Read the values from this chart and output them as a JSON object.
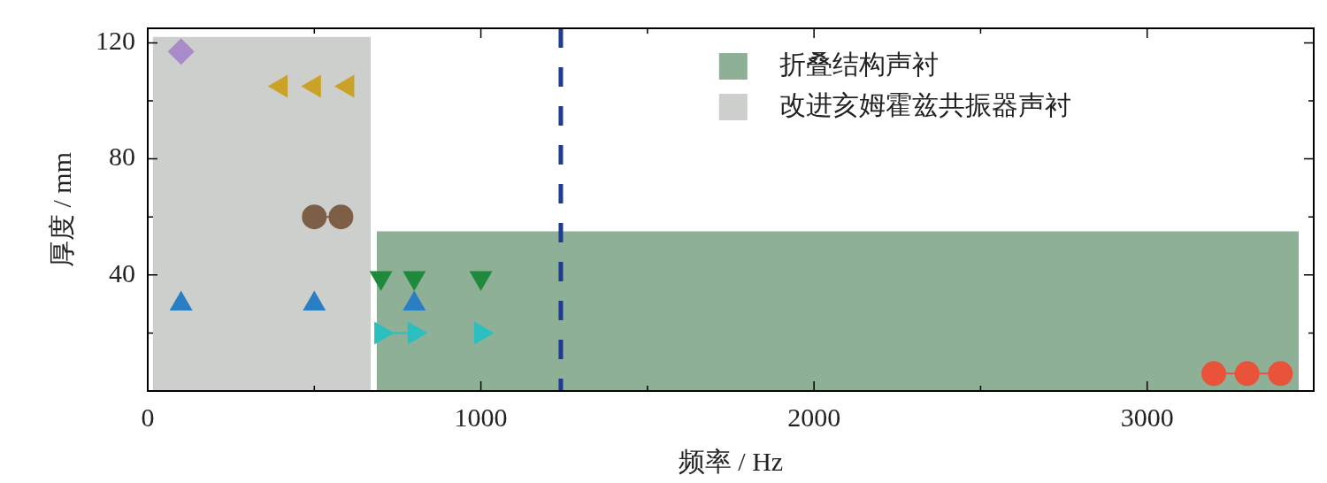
{
  "chart_data": {
    "type": "scatter",
    "xlabel": "频率 / Hz",
    "ylabel": "厚度 / mm",
    "xlim": [
      0,
      3500
    ],
    "ylim": [
      0,
      125
    ],
    "xticks": [
      0,
      {
        "value": 500,
        "label": null
      },
      1000,
      {
        "value": 1500,
        "label": null
      },
      2000,
      {
        "value": 2500,
        "label": null
      },
      3000
    ],
    "yticks": [
      {
        "value": 20,
        "label": null
      },
      40,
      {
        "value": 60,
        "label": null
      },
      80,
      {
        "value": 100,
        "label": null
      },
      120
    ],
    "legend": "top right",
    "grid": false,
    "ref_lines": [
      {
        "axis": "x",
        "value": 1240,
        "color": "#1f3a93",
        "line_style": "dashed"
      }
    ],
    "series": [
      {
        "type": "area",
        "name": "折叠结构声衬",
        "color": "#8db096",
        "x": [
          687,
          3455
        ],
        "values": [
          55,
          55
        ]
      },
      {
        "type": "area",
        "name": "改进亥姆霍兹共振器声衬",
        "color": "#cdcfcd",
        "x": [
          15,
          670
        ],
        "values": [
          122,
          122
        ]
      },
      {
        "color": "#a98bc9",
        "marker": "diamond",
        "x": [
          100
        ],
        "values": [
          117
        ]
      },
      {
        "color": "#c9a227",
        "marker": "triangle",
        "x": [
          400,
          500,
          600
        ],
        "values": [
          105,
          105,
          105
        ]
      },
      {
        "type": "line",
        "color": "#7d5f47",
        "marker": "circle",
        "x": [
          500,
          580
        ],
        "values": [
          60,
          60
        ]
      },
      {
        "color": "#2a7fc4",
        "marker": "triangle",
        "x": [
          100,
          500,
          800
        ],
        "values": [
          30,
          30,
          30
        ]
      },
      {
        "color": "#1f8a3c",
        "marker": "triangle",
        "x": [
          700,
          800,
          1000
        ],
        "values": [
          39,
          39,
          39
        ]
      },
      {
        "type": "line",
        "color": "#2bbfbf",
        "marker": "triangle",
        "x": [
          700,
          800
        ],
        "values": [
          20,
          20
        ]
      },
      {
        "color": "#2bbfbf",
        "marker": "triangle",
        "x": [
          1000
        ],
        "values": [
          20
        ]
      },
      {
        "type": "line",
        "color": "#e8533a",
        "marker": "circle",
        "x": [
          3200,
          3300,
          3400
        ],
        "values": [
          6,
          6,
          6
        ]
      }
    ]
  }
}
